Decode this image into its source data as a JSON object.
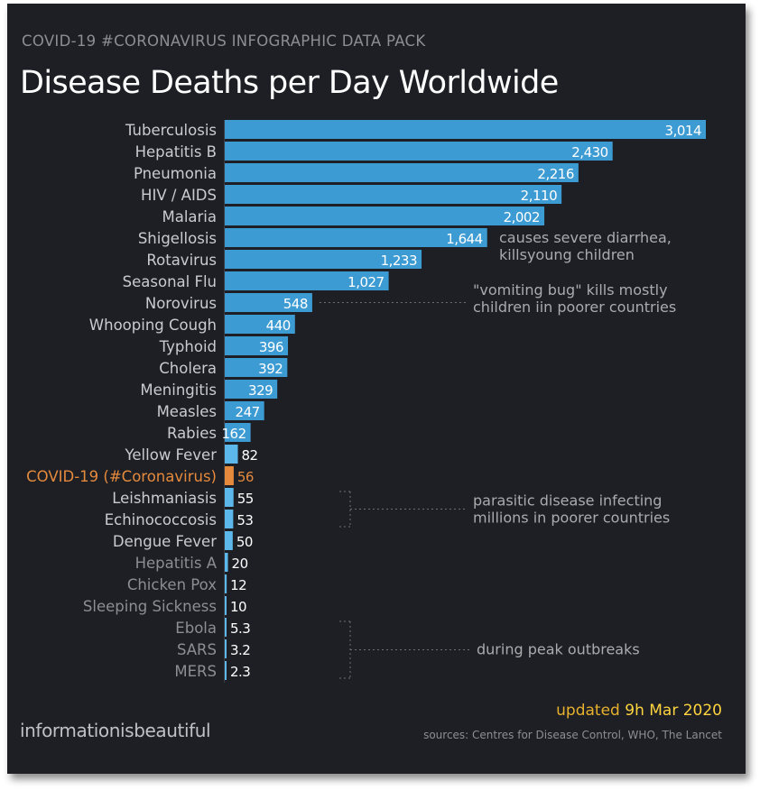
{
  "header": {
    "pack_title": "COVID-19 #CORONAVIRUS INFOGRAPHIC DATA PACK",
    "title": "Disease Deaths per Day Worldwide"
  },
  "footer": {
    "brand": "informationisbeautiful",
    "updated_prefix": "updated ",
    "updated_date": "9h Mar 2020",
    "sources": "sources: Centres for Disease Control, WHO, The Lancet"
  },
  "colors": {
    "background": "#1d1f24",
    "bar": "#3d9bd3",
    "bar_light": "#5cb8ea",
    "highlight": "#e58a3d",
    "label": "#c9cbce",
    "muted_label": "#8b8e93",
    "annotation": "#a9abae",
    "accent_text": "#e7b02d"
  },
  "chart_data": {
    "type": "bar",
    "orientation": "horizontal",
    "title": "Disease Deaths per Day Worldwide",
    "xlabel": "",
    "ylabel": "",
    "xlim": [
      0,
      3014
    ],
    "grid": false,
    "categories": [
      "Tuberculosis",
      "Hepatitis B",
      "Pneumonia",
      "HIV / AIDS",
      "Malaria",
      "Shigellosis",
      "Rotavirus",
      "Seasonal Flu",
      "Norovirus",
      "Whooping Cough",
      "Typhoid",
      "Cholera",
      "Meningitis",
      "Measles",
      "Rabies",
      "Yellow Fever",
      "COVID-19 (#Coronavirus)",
      "Leishmaniasis",
      "Echinococcosis",
      "Dengue Fever",
      "Hepatitis A",
      "Chicken Pox",
      "Sleeping Sickness",
      "Ebola",
      "SARS",
      "MERS"
    ],
    "values": [
      3014,
      2430,
      2216,
      2110,
      2002,
      1644,
      1233,
      1027,
      548,
      440,
      396,
      392,
      329,
      247,
      162,
      82,
      56,
      55,
      53,
      50,
      20,
      12,
      10,
      5.3,
      3.2,
      2.3
    ],
    "value_labels": [
      "3,014",
      "2,430",
      "2,216",
      "2,110",
      "2,002",
      "1,644",
      "1,233",
      "1,027",
      "548",
      "440",
      "396",
      "392",
      "329",
      "247",
      "162",
      "82",
      "56",
      "55",
      "53",
      "50",
      "20",
      "12",
      "10",
      "5.3",
      "3.2",
      "2.3"
    ],
    "highlight_category": "COVID-19 (#Coronavirus)",
    "muted_categories": [
      "Hepatitis A",
      "Chicken Pox",
      "Sleeping Sickness",
      "Ebola",
      "SARS",
      "MERS"
    ],
    "annotations": [
      {
        "category": "Shigellosis",
        "lines": [
          "causes severe diarrhea,",
          "killsyoung children"
        ]
      },
      {
        "category": "Norovirus",
        "lines": [
          "\"vomiting bug\" kills mostly",
          "children iin poorer countries"
        ]
      },
      {
        "categories": [
          "Leishmaniasis",
          "Echinococcosis"
        ],
        "lines": [
          "parasitic disease infecting",
          "millions in poorer countries"
        ]
      },
      {
        "categories": [
          "Ebola",
          "SARS",
          "MERS"
        ],
        "lines": [
          "during peak outbreaks"
        ]
      }
    ]
  }
}
